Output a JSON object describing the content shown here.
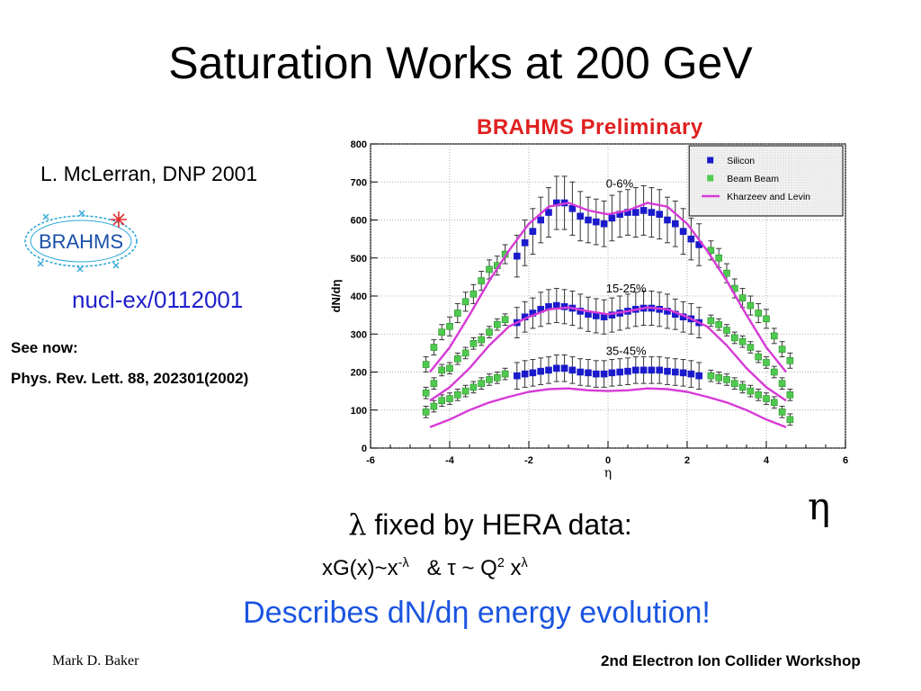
{
  "slide": {
    "title": "Saturation Works at 200 GeV",
    "reference": "L. McLerran, DNP 2001",
    "logo_text": "BRAHMS",
    "arxiv": "nucl-ex/0112001",
    "see_now": "See now:",
    "journal": "Phys. Rev. Lett. 88, 202301(2002)",
    "eta_symbol": "η",
    "lambda_symbol": "λ",
    "lambda_text": " fixed by HERA data:",
    "formula_a": "xG(x)~x",
    "formula_sup1": "-λ",
    "formula_b": "   & τ ~ Q",
    "formula_sup2": "2",
    "formula_c": " x",
    "formula_sup3": "λ",
    "describes": "Describes dN/dη energy evolution!",
    "footer_left": "Mark D. Baker",
    "footer_right": "2nd Electron Ion Collider Workshop"
  },
  "chart_data": {
    "type": "scatter",
    "banner": "BRAHMS Preliminary",
    "xlabel": "η",
    "ylabel": "dN/dη",
    "xlim": [
      -6,
      6
    ],
    "ylim": [
      0,
      800
    ],
    "xticks": [
      -6,
      -4,
      -2,
      0,
      2,
      4,
      6
    ],
    "yticks": [
      0,
      100,
      200,
      300,
      400,
      500,
      600,
      700,
      800
    ],
    "grid": true,
    "legend_position": "top-right",
    "legend": [
      {
        "label": "Silicon",
        "marker": "square",
        "color": "#1a1acc"
      },
      {
        "label": "Beam Beam",
        "marker": "square",
        "color": "#4ecb4e"
      },
      {
        "label": "Kharzeev and Levin",
        "marker": "line",
        "color": "#d63ad6"
      }
    ],
    "annotations": [
      "0-6%",
      "15-25%",
      "35-45%"
    ],
    "colors": {
      "silicon": "#1a1acc",
      "beambeam": "#4ecb4e",
      "theory": "#d63ad6"
    },
    "series": [
      {
        "name": "Silicon",
        "centrality": "0-6%",
        "x": [
          -2.3,
          -2.1,
          -1.9,
          -1.7,
          -1.5,
          -1.3,
          -1.1,
          -0.9,
          -0.7,
          -0.5,
          -0.3,
          -0.1,
          0.1,
          0.3,
          0.5,
          0.7,
          0.9,
          1.1,
          1.3,
          1.5,
          1.7,
          1.9,
          2.1,
          2.3
        ],
        "y": [
          505,
          540,
          570,
          600,
          620,
          645,
          645,
          630,
          610,
          600,
          595,
          590,
          605,
          615,
          620,
          620,
          625,
          620,
          615,
          600,
          590,
          570,
          550,
          535
        ],
        "err": [
          55,
          60,
          60,
          60,
          65,
          70,
          70,
          70,
          65,
          60,
          60,
          60,
          60,
          60,
          60,
          65,
          65,
          65,
          65,
          60,
          60,
          60,
          55,
          55
        ]
      },
      {
        "name": "Silicon",
        "centrality": "15-25%",
        "x": [
          -2.3,
          -2.1,
          -1.9,
          -1.7,
          -1.5,
          -1.3,
          -1.1,
          -0.9,
          -0.7,
          -0.5,
          -0.3,
          -0.1,
          0.1,
          0.3,
          0.5,
          0.7,
          0.9,
          1.1,
          1.3,
          1.5,
          1.7,
          1.9,
          2.1,
          2.3
        ],
        "y": [
          330,
          345,
          355,
          365,
          372,
          375,
          372,
          368,
          360,
          352,
          348,
          345,
          350,
          355,
          360,
          365,
          368,
          368,
          365,
          360,
          352,
          345,
          340,
          330
        ],
        "err": [
          40,
          40,
          40,
          45,
          45,
          45,
          45,
          45,
          45,
          45,
          45,
          45,
          45,
          45,
          45,
          45,
          45,
          45,
          45,
          45,
          40,
          40,
          40,
          40
        ]
      },
      {
        "name": "Silicon",
        "centrality": "35-45%",
        "x": [
          -2.3,
          -2.1,
          -1.9,
          -1.7,
          -1.5,
          -1.3,
          -1.1,
          -0.9,
          -0.7,
          -0.5,
          -0.3,
          -0.1,
          0.1,
          0.3,
          0.5,
          0.7,
          0.9,
          1.1,
          1.3,
          1.5,
          1.7,
          1.9,
          2.1,
          2.3
        ],
        "y": [
          190,
          195,
          198,
          202,
          205,
          210,
          210,
          205,
          200,
          198,
          195,
          195,
          198,
          200,
          202,
          205,
          205,
          205,
          205,
          202,
          200,
          198,
          195,
          190
        ],
        "err": [
          35,
          35,
          35,
          35,
          35,
          35,
          35,
          35,
          35,
          35,
          35,
          35,
          35,
          35,
          35,
          35,
          35,
          35,
          35,
          35,
          35,
          35,
          35,
          35
        ]
      },
      {
        "name": "Beam Beam",
        "centrality": "0-6%",
        "x": [
          -4.6,
          -4.4,
          -4.2,
          -4.0,
          -3.8,
          -3.6,
          -3.4,
          -3.2,
          -3.0,
          -2.8,
          -2.6,
          2.6,
          2.8,
          3.0,
          3.2,
          3.4,
          3.6,
          3.8,
          4.0,
          4.2,
          4.4,
          4.6
        ],
        "y": [
          220,
          265,
          305,
          320,
          355,
          385,
          405,
          440,
          470,
          480,
          510,
          520,
          500,
          460,
          420,
          395,
          375,
          355,
          340,
          295,
          260,
          230
        ],
        "err": [
          20,
          20,
          20,
          25,
          25,
          25,
          25,
          25,
          25,
          25,
          25,
          25,
          25,
          25,
          25,
          25,
          25,
          25,
          25,
          20,
          20,
          20
        ]
      },
      {
        "name": "Beam Beam",
        "centrality": "15-25%",
        "x": [
          -4.6,
          -4.4,
          -4.2,
          -4.0,
          -3.8,
          -3.6,
          -3.4,
          -3.2,
          -3.0,
          -2.8,
          -2.6,
          2.6,
          2.8,
          3.0,
          3.2,
          3.4,
          3.6,
          3.8,
          4.0,
          4.2,
          4.4,
          4.6
        ],
        "y": [
          145,
          170,
          205,
          210,
          235,
          250,
          275,
          285,
          305,
          325,
          338,
          335,
          325,
          310,
          290,
          280,
          265,
          240,
          225,
          200,
          170,
          140
        ],
        "err": [
          15,
          15,
          15,
          15,
          15,
          15,
          15,
          15,
          15,
          15,
          15,
          15,
          15,
          15,
          15,
          15,
          15,
          15,
          15,
          15,
          15,
          15
        ]
      },
      {
        "name": "Beam Beam",
        "centrality": "35-45%",
        "x": [
          -4.6,
          -4.4,
          -4.2,
          -4.0,
          -3.8,
          -3.6,
          -3.4,
          -3.2,
          -3.0,
          -2.8,
          -2.6,
          2.6,
          2.8,
          3.0,
          3.2,
          3.4,
          3.6,
          3.8,
          4.0,
          4.2,
          4.4,
          4.6
        ],
        "y": [
          95,
          110,
          125,
          130,
          140,
          150,
          160,
          170,
          180,
          185,
          195,
          190,
          185,
          180,
          170,
          160,
          150,
          140,
          130,
          120,
          95,
          75
        ],
        "err": [
          15,
          15,
          15,
          15,
          15,
          15,
          15,
          15,
          15,
          15,
          15,
          15,
          15,
          15,
          15,
          15,
          15,
          15,
          15,
          15,
          15,
          15
        ]
      },
      {
        "name": "Kharzeev and Levin",
        "centrality": "0-6%",
        "x": [
          -4.5,
          -4.0,
          -3.5,
          -3.0,
          -2.5,
          -2.0,
          -1.5,
          -1.0,
          -0.5,
          0,
          0.5,
          1.0,
          1.5,
          2.0,
          2.5,
          3.0,
          3.5,
          4.0,
          4.5
        ],
        "y": [
          200,
          265,
          350,
          440,
          520,
          590,
          635,
          645,
          625,
          615,
          625,
          645,
          635,
          590,
          520,
          440,
          350,
          265,
          200
        ]
      },
      {
        "name": "Kharzeev and Levin",
        "centrality": "15-25%",
        "x": [
          -4.5,
          -4.0,
          -3.5,
          -3.0,
          -2.5,
          -2.0,
          -1.5,
          -1.0,
          -0.5,
          0,
          0.5,
          1.0,
          1.5,
          2.0,
          2.5,
          3.0,
          3.5,
          4.0,
          4.5
        ],
        "y": [
          125,
          160,
          210,
          270,
          320,
          345,
          365,
          370,
          360,
          352,
          360,
          370,
          365,
          345,
          320,
          270,
          210,
          160,
          125
        ]
      },
      {
        "name": "Kharzeev and Levin",
        "centrality": "35-45%",
        "x": [
          -4.5,
          -4.0,
          -3.5,
          -3.0,
          -2.5,
          -2.0,
          -1.5,
          -1.0,
          -0.5,
          0,
          0.5,
          1.0,
          1.5,
          2.0,
          2.5,
          3.0,
          3.5,
          4.0,
          4.5
        ],
        "y": [
          55,
          75,
          100,
          120,
          135,
          148,
          155,
          157,
          152,
          150,
          152,
          157,
          155,
          148,
          135,
          120,
          100,
          75,
          55
        ]
      }
    ]
  }
}
